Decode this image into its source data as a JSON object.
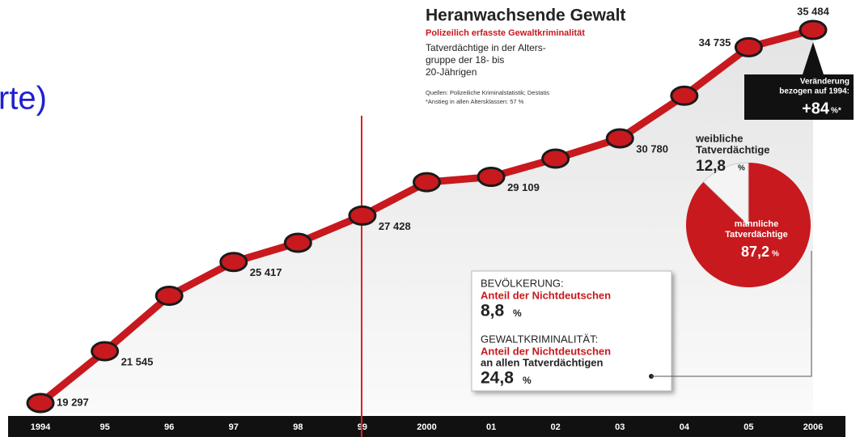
{
  "slide_text": "rte)",
  "chart_data": [
    {
      "type": "line",
      "title": "Heranwachsende Gewalt",
      "subtitle": "Polizeilich erfasste Gewaltkriminalität",
      "description": [
        "Tatverdächtige in der Alters-",
        "gruppe der 18- bis",
        "20-Jährigen"
      ],
      "sources": [
        "Quellen: Polizeiliche Kriminalstatistik; Destatis",
        "*Anstieg in allen Altersklassen: 57 %"
      ],
      "categories": [
        "1994",
        "95",
        "96",
        "97",
        "98",
        "99",
        "2000",
        "01",
        "02",
        "03",
        "04",
        "05",
        "2006"
      ],
      "values": [
        19297,
        21545,
        23950,
        25417,
        26250,
        27428,
        28880,
        29109,
        29900,
        30780,
        32630,
        34735,
        35484
      ],
      "value_labels": [
        "19 297",
        "21 545",
        null,
        "25 417",
        null,
        "27 428",
        null,
        "29 109",
        null,
        "30 780",
        null,
        "34 735",
        "35 484"
      ],
      "color": "#c8191e",
      "change_box": {
        "label": [
          "Veränderung",
          "bezogen auf 1994:"
        ],
        "value": "+84",
        "unit": "%*"
      },
      "info_box": [
        {
          "heading": "BEVÖLKERUNG:",
          "lines": [
            "Anteil der Nichtdeutschen"
          ],
          "value": "8,8",
          "unit": "%"
        },
        {
          "heading": "GEWALTKRIMINALITÄT:",
          "lines": [
            "Anteil der Nichtdeutschen",
            "an allen Tatverdächtigen"
          ],
          "value": "24,8",
          "unit": "%"
        }
      ]
    },
    {
      "type": "pie",
      "categories": [
        [
          "männliche",
          "Tatverdächtige"
        ],
        [
          "weibliche",
          "Tatverdächtige"
        ]
      ],
      "values": [
        87.2,
        12.8
      ],
      "value_labels": [
        "87,2",
        "12,8"
      ],
      "unit": "%",
      "colors": [
        "#c8191e",
        "#f4f4f4"
      ]
    }
  ]
}
